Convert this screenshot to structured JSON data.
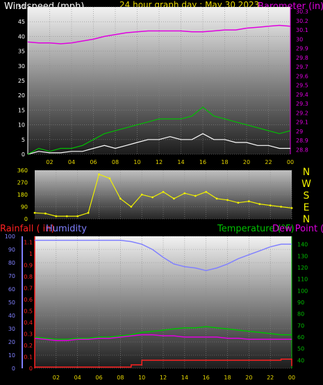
{
  "header": {
    "left_title": "Windspeed (mph)",
    "center_title": "24 hour graph day : May 30 2023",
    "right_title": "Barometer (in)"
  },
  "colors": {
    "background": "#000000",
    "wind_text": "#ffffff",
    "title_text": "#e8d800",
    "barometer": "#e000e0",
    "wind_avg": "#ffffff",
    "wind_gust": "#00c000",
    "direction": "#f0f000",
    "rainfall": "#ff2020",
    "humidity": "#8080ff",
    "temperature": "#00c000",
    "dew_point": "#e000e0",
    "grid": "#8a8a8a"
  },
  "compass_labels": [
    "N",
    "W",
    "S",
    "E",
    "N"
  ],
  "lower_header": {
    "rain_label": "Rainfall ( in)",
    "humidity_label": "Humidity",
    "temp_label": "Temperature (°F)",
    "dew_label": "Dew Point (°F)"
  },
  "chart_data": [
    {
      "id": "wind",
      "type": "line",
      "x_ticks": [
        "02",
        "04",
        "06",
        "08",
        "10",
        "12",
        "14",
        "16",
        "18",
        "20",
        "22",
        "00"
      ],
      "y_left_ticks": [
        "0",
        "5",
        "10",
        "15",
        "20",
        "25",
        "30",
        "35",
        "40",
        "45",
        "50"
      ],
      "y_left_lim": [
        0,
        50
      ],
      "y_right_ticks": [
        "28.8",
        "28.9",
        "29",
        "29.1",
        "29.2",
        "29.3",
        "29.4",
        "29.5",
        "29.6",
        "29.7",
        "29.8",
        "29.9",
        "30",
        "30.1",
        "30.2",
        "30.3"
      ],
      "y_right_lim": [
        28.75,
        30.35
      ],
      "hours": [
        0,
        1,
        2,
        3,
        4,
        5,
        6,
        7,
        8,
        9,
        10,
        11,
        12,
        13,
        14,
        15,
        16,
        17,
        18,
        19,
        20,
        21,
        22,
        23,
        24
      ],
      "series": [
        {
          "key": "barometer",
          "axis": "right",
          "values": [
            29.97,
            29.96,
            29.96,
            29.95,
            29.96,
            29.98,
            30.0,
            30.03,
            30.05,
            30.07,
            30.08,
            30.09,
            30.09,
            30.09,
            30.09,
            30.08,
            30.08,
            30.09,
            30.1,
            30.1,
            30.12,
            30.13,
            30.14,
            30.15,
            30.14
          ]
        },
        {
          "key": "wind_avg",
          "axis": "left",
          "values": [
            0,
            1,
            0.5,
            0.5,
            1,
            1,
            2,
            3,
            2,
            3,
            4,
            5,
            5,
            6,
            5,
            5,
            7,
            5,
            5,
            4,
            4,
            3,
            3,
            2,
            2
          ]
        },
        {
          "key": "wind_gust",
          "axis": "left",
          "values": [
            0,
            2,
            1,
            2,
            2,
            3,
            5,
            7,
            8,
            9,
            10,
            11,
            12,
            12,
            12,
            13,
            16,
            13,
            12,
            11,
            10,
            9,
            8,
            7,
            8
          ]
        }
      ]
    },
    {
      "id": "direction",
      "type": "scatter",
      "x_ticks": [
        "02",
        "04",
        "06",
        "08",
        "10",
        "12",
        "14",
        "16",
        "18",
        "20",
        "22",
        "00"
      ],
      "y_ticks": [
        "0",
        "90",
        "180",
        "270",
        "360"
      ],
      "ylim": [
        0,
        360
      ],
      "hours": [
        0,
        1,
        2,
        3,
        4,
        5,
        6,
        7,
        8,
        9,
        10,
        11,
        12,
        13,
        14,
        15,
        16,
        17,
        18,
        19,
        20,
        21,
        22,
        23,
        24
      ],
      "series": [
        {
          "key": "direction",
          "values": [
            45,
            40,
            20,
            20,
            20,
            45,
            330,
            300,
            150,
            90,
            180,
            160,
            200,
            150,
            190,
            170,
            200,
            150,
            140,
            120,
            130,
            110,
            100,
            90,
            80
          ]
        }
      ]
    },
    {
      "id": "climate",
      "type": "line",
      "x_ticks": [
        "02",
        "04",
        "06",
        "08",
        "10",
        "12",
        "14",
        "16",
        "18",
        "20",
        "22",
        "00"
      ],
      "y_humidity_ticks": [
        "0",
        "10",
        "20",
        "30",
        "40",
        "50",
        "60",
        "70",
        "80",
        "90",
        "100"
      ],
      "y_humidity_lim": [
        0,
        100
      ],
      "y_rain_ticks": [
        "0",
        "0.1",
        "0.2",
        "0.3",
        "0.4",
        "0.5",
        "0.6",
        "0.7",
        "0.8",
        "0.9",
        "1",
        "1.1"
      ],
      "y_rain_lim": [
        0,
        1.15
      ],
      "y_temp_ticks": [
        "40",
        "50",
        "60",
        "70",
        "80",
        "90",
        "100",
        "110",
        "120",
        "130",
        "140"
      ],
      "y_temp_lim": [
        33,
        147
      ],
      "hours": [
        0,
        1,
        2,
        3,
        4,
        5,
        6,
        7,
        8,
        9,
        10,
        11,
        12,
        13,
        14,
        15,
        16,
        17,
        18,
        19,
        20,
        21,
        22,
        23,
        24
      ],
      "series": [
        {
          "key": "humidity",
          "axis": "humidity",
          "values": [
            97,
            97,
            97,
            97,
            97,
            97,
            97,
            97,
            97,
            96,
            94,
            90,
            84,
            79,
            77,
            76,
            74,
            76,
            79,
            83,
            86,
            89,
            92,
            94,
            94
          ]
        },
        {
          "key": "temperature",
          "axis": "temp",
          "values": [
            60,
            59,
            58,
            58,
            59,
            59,
            60,
            60,
            61,
            62,
            64,
            65,
            66,
            67,
            68,
            68,
            69,
            68,
            67,
            66,
            65,
            64,
            63,
            62,
            62
          ]
        },
        {
          "key": "dew_point",
          "axis": "temp",
          "values": [
            59,
            58,
            57,
            57,
            58,
            58,
            59,
            59,
            60,
            61,
            62,
            62,
            61,
            61,
            60,
            60,
            60,
            60,
            59,
            59,
            58,
            58,
            58,
            58,
            58
          ]
        },
        {
          "key": "rainfall",
          "axis": "rain",
          "values": [
            0.01,
            0.01,
            0.01,
            0.01,
            0.01,
            0.01,
            0.01,
            0.01,
            0.01,
            0.03,
            0.07,
            0.07,
            0.07,
            0.07,
            0.07,
            0.07,
            0.07,
            0.07,
            0.07,
            0.07,
            0.07,
            0.07,
            0.07,
            0.08,
            0.02
          ]
        }
      ]
    }
  ]
}
